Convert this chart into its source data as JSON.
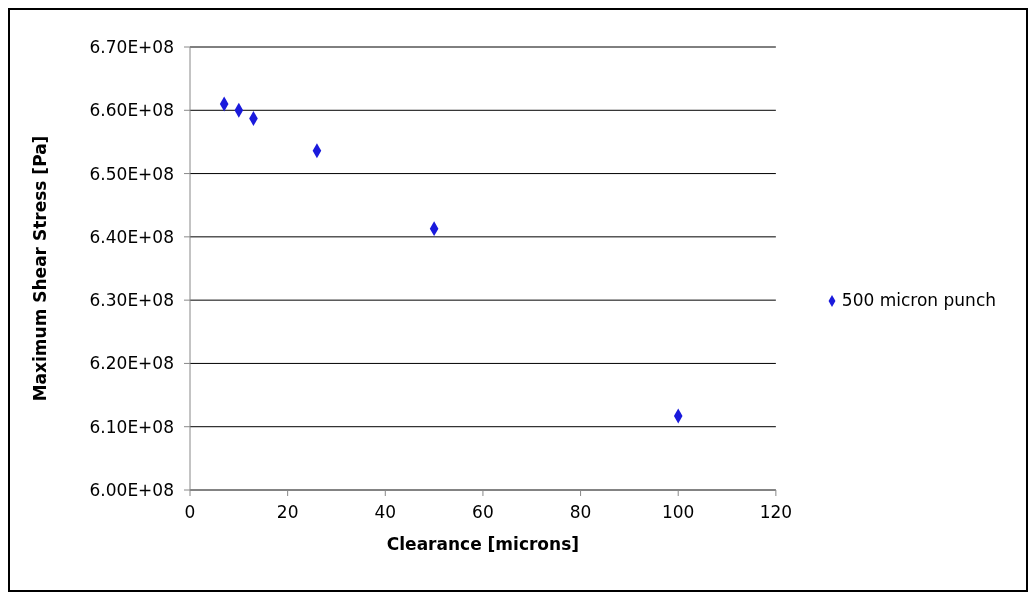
{
  "chart_data": {
    "type": "scatter",
    "xlabel": "Clearance [microns]",
    "ylabel": "Maximum Shear Stress [Pa]",
    "x": [
      7,
      10,
      13,
      26,
      50,
      100
    ],
    "series": [
      {
        "name": "500 micron punch",
        "color": "#1a1adc",
        "values": [
          661000000,
          660000000,
          658700000,
          653600000,
          641300000,
          611700000
        ]
      }
    ],
    "xlim": [
      0,
      120
    ],
    "xticks": [
      0,
      20,
      40,
      60,
      80,
      100,
      120
    ],
    "ylim": [
      600000000,
      670000000
    ],
    "yticks": [
      {
        "value": 600000000,
        "label": "6.00E+08"
      },
      {
        "value": 610000000,
        "label": "6.10E+08"
      },
      {
        "value": 620000000,
        "label": "6.20E+08"
      },
      {
        "value": 630000000,
        "label": "6.30E+08"
      },
      {
        "value": 640000000,
        "label": "6.40E+08"
      },
      {
        "value": 650000000,
        "label": "6.50E+08"
      },
      {
        "value": 660000000,
        "label": "6.60E+08"
      },
      {
        "value": 670000000,
        "label": "6.70E+08"
      }
    ],
    "grid": "y",
    "legend": "right",
    "marker": "diamond"
  }
}
